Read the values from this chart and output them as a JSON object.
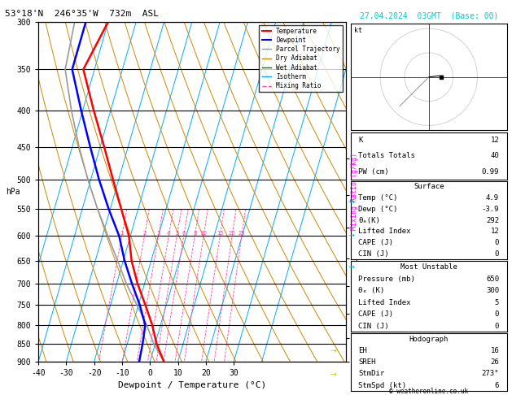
{
  "title_left": "53°18'N  246°35'W  732m  ASL",
  "title_right": "27.04.2024  03GMT  (Base: 00)",
  "xlabel": "Dewpoint / Temperature (°C)",
  "pressure_levels": [
    300,
    350,
    400,
    450,
    500,
    550,
    600,
    650,
    700,
    750,
    800,
    850,
    900
  ],
  "pmin": 300,
  "pmax": 900,
  "tmin": -40,
  "tmax": 35,
  "km_ticks": [
    1,
    2,
    3,
    4,
    5,
    6,
    7,
    8
  ],
  "km_pressures": [
    940,
    870,
    800,
    730,
    665,
    600,
    538,
    475
  ],
  "lcl_pressure": 810,
  "mixing_ratios": [
    1,
    2,
    3,
    4,
    5,
    6,
    8,
    10,
    15,
    20,
    25
  ],
  "mixing_ratio_label_pressure": 600,
  "temp_profile": {
    "pressure": [
      900,
      850,
      800,
      750,
      700,
      650,
      600,
      550,
      500,
      450,
      400,
      350,
      300
    ],
    "temperature": [
      4.9,
      0.5,
      -3.0,
      -7.5,
      -12.5,
      -17.0,
      -20.5,
      -26.0,
      -32.0,
      -38.5,
      -46.0,
      -54.0,
      -50.0
    ]
  },
  "dewp_profile": {
    "pressure": [
      900,
      850,
      800,
      750,
      700,
      650,
      600,
      550,
      500,
      450,
      400,
      350,
      300
    ],
    "temperature": [
      -3.9,
      -4.5,
      -5.5,
      -9.5,
      -14.5,
      -19.5,
      -24.0,
      -30.5,
      -37.0,
      -43.5,
      -50.5,
      -58.0,
      -58.0
    ]
  },
  "parcel_profile": {
    "pressure": [
      900,
      850,
      800,
      750,
      700,
      650,
      600,
      550,
      500,
      450,
      400,
      350,
      300
    ],
    "temperature": [
      4.9,
      -0.5,
      -5.0,
      -10.5,
      -16.5,
      -22.0,
      -28.0,
      -34.5,
      -41.0,
      -47.5,
      -54.0,
      -60.5,
      -62.0
    ]
  },
  "colors": {
    "temperature": "#ff0000",
    "dewpoint": "#0000ff",
    "parcel": "#999999",
    "dry_adiabat": "#cc8800",
    "wet_adiabat": "#008800",
    "isotherm": "#00aaff",
    "mixing_ratio": "#ff44aa",
    "background": "#ffffff",
    "grid": "#000000",
    "cyan": "#00cccc",
    "yellow": "#cccc00"
  },
  "info_panel": {
    "K": 12,
    "Totals_Totals": 40,
    "PW_cm": 0.99,
    "Surface_Temp": 4.9,
    "Surface_Dewp": -3.9,
    "theta_e_K": 292,
    "Lifted_Index": 12,
    "CAPE": 0,
    "CIN": 0,
    "MU_Pressure_mb": 650,
    "MU_theta_e_K": 300,
    "MU_Lifted_Index": 5,
    "MU_CAPE": 0,
    "MU_CIN": 0,
    "EH": 16,
    "SREH": 26,
    "StmDir": 273,
    "StmSpd_kt": 6
  },
  "skew_factor": 35.0
}
